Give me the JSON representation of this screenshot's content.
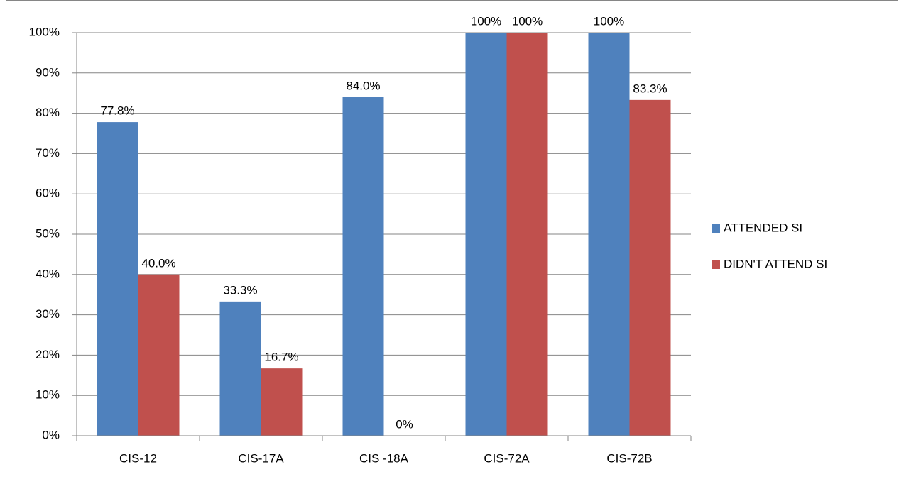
{
  "chart_data": {
    "type": "bar",
    "categories": [
      "CIS-12",
      "CIS-17A",
      "CIS -18A",
      "CIS-72A",
      "CIS-72B"
    ],
    "series": [
      {
        "name": "ATTENDED SI",
        "color": "#4f81bd",
        "values": [
          77.8,
          33.3,
          84.0,
          100,
          100
        ],
        "value_labels": [
          "77.8%",
          "33.3%",
          "84.0%",
          "100%",
          "100%"
        ]
      },
      {
        "name": "DIDN'T ATTEND SI",
        "color": "#c0504d",
        "values": [
          40.0,
          16.7,
          0,
          100,
          83.3
        ],
        "value_labels": [
          "40.0%",
          "16.7%",
          "0%",
          "100%",
          "83.3%"
        ]
      }
    ],
    "ylim": [
      0,
      100
    ],
    "yticks": [
      {
        "value": 0,
        "label": "0%"
      },
      {
        "value": 10,
        "label": "10%"
      },
      {
        "value": 20,
        "label": "20%"
      },
      {
        "value": 30,
        "label": "30%"
      },
      {
        "value": 40,
        "label": "40%"
      },
      {
        "value": 50,
        "label": "50%"
      },
      {
        "value": 60,
        "label": "60%"
      },
      {
        "value": 70,
        "label": "70%"
      },
      {
        "value": 80,
        "label": "80%"
      },
      {
        "value": 90,
        "label": "90%"
      },
      {
        "value": 100,
        "label": "100%"
      }
    ],
    "grid": true,
    "legend": "right"
  }
}
